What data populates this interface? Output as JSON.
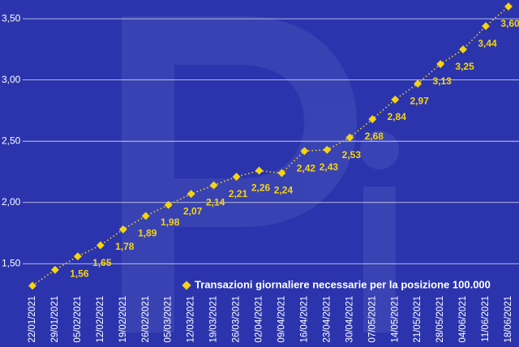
{
  "chart_data": {
    "type": "line",
    "x": [
      "22/01/2021",
      "29/01/2021",
      "05/02/2021",
      "12/02/2021",
      "19/02/2021",
      "26/02/2021",
      "05/03/2021",
      "12/03/2021",
      "19/03/2021",
      "26/03/2021",
      "02/04/2021",
      "09/04/2021",
      "16/04/2021",
      "23/04/2021",
      "30/04/2021",
      "07/05/2021",
      "14/05/2021",
      "21/05/2021",
      "28/05/2021",
      "04/06/2021",
      "11/06/2021",
      "18/06/2021"
    ],
    "series": [
      {
        "name": "Transazioni giornaliere necessarie per la posizione 100.000",
        "color": "#f5d40f",
        "values": [
          1.32,
          1.45,
          1.56,
          1.65,
          1.78,
          1.89,
          1.98,
          2.07,
          2.14,
          2.21,
          2.26,
          2.24,
          2.42,
          2.43,
          2.53,
          2.68,
          2.84,
          2.97,
          3.13,
          3.25,
          3.44,
          3.6
        ],
        "value_labels": [
          null,
          null,
          "1,56",
          "1,65",
          "1,78",
          "1,89",
          "1,98",
          "2,07",
          "2,14",
          "2,21",
          "2,26",
          "2,24",
          "2,42",
          "2,43",
          "2,53",
          "2,68",
          "2,84",
          "2,97",
          "3,13",
          "3,25",
          "3,44",
          "3,60"
        ]
      }
    ],
    "ylim": [
      1.27,
      3.62
    ],
    "yticks": [
      {
        "value": 1.5,
        "label": "1,50"
      },
      {
        "value": 2.0,
        "label": "2,00"
      },
      {
        "value": 2.5,
        "label": "2,50"
      },
      {
        "value": 3.0,
        "label": "3,00"
      },
      {
        "value": 3.5,
        "label": "3,50"
      }
    ],
    "grid": true,
    "legend": "bottom-right"
  }
}
